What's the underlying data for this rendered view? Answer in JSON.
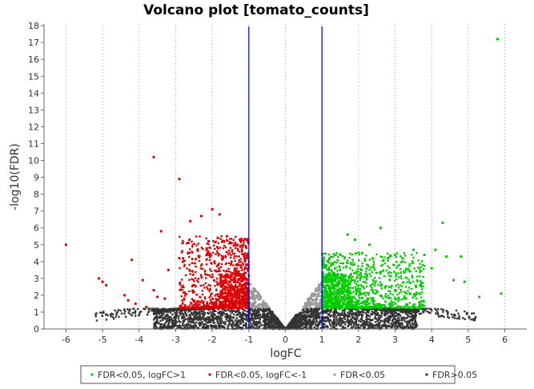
{
  "chart_data": {
    "type": "scatter",
    "title": "Volcano plot [tomato_counts]",
    "xlabel": "logFC",
    "ylabel": "-log10(FDR)",
    "xlim": [
      -6.6,
      6.6
    ],
    "ylim": [
      0,
      18.1
    ],
    "x_ticks": [
      -6,
      -5,
      -4,
      -3,
      -2,
      -1,
      0,
      1,
      2,
      3,
      4,
      5,
      6
    ],
    "y_ticks": [
      0,
      1,
      2,
      3,
      4,
      5,
      6,
      7,
      8,
      9,
      10,
      11,
      12,
      13,
      14,
      15,
      16,
      17,
      18
    ],
    "grid": "vertical dotted",
    "threshold_lines": [
      {
        "x": -1,
        "color": "#0000cc"
      },
      {
        "x": 1,
        "color": "#0000cc"
      }
    ],
    "legend_position": "bottom",
    "series": [
      {
        "name": "FDR<0.05, logFC>1",
        "color": "#00cc00",
        "points": [
          [
            5.8,
            17.2
          ],
          [
            4.3,
            6.3
          ],
          [
            2.6,
            6.0
          ],
          [
            1.7,
            5.6
          ],
          [
            1.9,
            5.3
          ],
          [
            2.3,
            5.0
          ],
          [
            3.0,
            4.4
          ],
          [
            3.5,
            4.7
          ],
          [
            3.8,
            4.4
          ],
          [
            4.1,
            4.7
          ],
          [
            4.4,
            4.3
          ],
          [
            4.8,
            4.3
          ],
          [
            3.2,
            4.0
          ],
          [
            2.8,
            4.2
          ],
          [
            2.1,
            4.5
          ],
          [
            1.5,
            4.4
          ],
          [
            1.3,
            3.9
          ],
          [
            4.0,
            3.6
          ],
          [
            4.6,
            2.9
          ],
          [
            4.9,
            2.8
          ],
          [
            5.9,
            2.1
          ],
          [
            5.3,
            1.9
          ],
          [
            3.3,
            1.8
          ],
          [
            3.7,
            2.6
          ],
          [
            1.2,
            3.3
          ],
          [
            1.1,
            2.4
          ],
          [
            2.2,
            1.6
          ],
          [
            2.9,
            1.5
          ],
          [
            1.6,
            3.1
          ],
          [
            2.4,
            3.7
          ]
        ]
      },
      {
        "name": "FDR<0.05, logFC<-1",
        "color": "#dd0000",
        "points": [
          [
            -3.6,
            10.2
          ],
          [
            -2.9,
            8.9
          ],
          [
            -2.0,
            7.1
          ],
          [
            -2.3,
            6.7
          ],
          [
            -1.8,
            6.8
          ],
          [
            -2.6,
            6.4
          ],
          [
            -6.0,
            5.0
          ],
          [
            -3.4,
            5.8
          ],
          [
            -2.1,
            5.2
          ],
          [
            -1.6,
            5.5
          ],
          [
            -4.2,
            4.1
          ],
          [
            -2.9,
            4.2
          ],
          [
            -3.2,
            3.5
          ],
          [
            -5.1,
            3.0
          ],
          [
            -5.0,
            2.8
          ],
          [
            -4.9,
            2.6
          ],
          [
            -4.4,
            2.0
          ],
          [
            -4.3,
            1.7
          ],
          [
            -4.1,
            1.5
          ],
          [
            -3.9,
            2.9
          ],
          [
            -3.6,
            2.3
          ],
          [
            -3.5,
            1.9
          ],
          [
            -2.5,
            2.6
          ],
          [
            -1.5,
            3.1
          ],
          [
            -1.3,
            2.2
          ],
          [
            -1.1,
            2.6
          ],
          [
            -3.8,
            1.3
          ],
          [
            -3.3,
            1.8
          ]
        ]
      },
      {
        "name": "FDR<0.05",
        "color": "#999999"
      },
      {
        "name": "FDR>0.05",
        "color": "#333333"
      }
    ]
  }
}
